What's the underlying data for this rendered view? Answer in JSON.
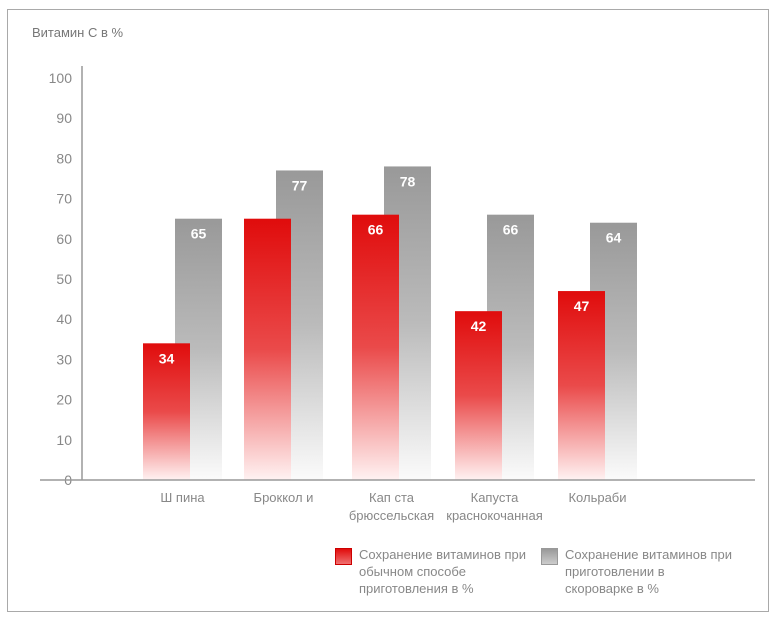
{
  "chart_data": {
    "type": "bar",
    "title": "",
    "ylabel": "Витамин С в %",
    "xlabel": "",
    "ylim": [
      0,
      100
    ],
    "yticks": [
      0,
      10,
      20,
      30,
      40,
      50,
      60,
      70,
      80,
      90,
      100
    ],
    "grid": false,
    "legend_position": "bottom-right",
    "categories": [
      [
        "Ш пина"
      ],
      [
        "Броккол и"
      ],
      [
        "Кап ста",
        "брюссельская"
      ],
      [
        "Капуста",
        "краснокочанная"
      ],
      [
        "Кольраби"
      ]
    ],
    "series": [
      {
        "name": "Сохранение витаминов при обычном способе приготовления в %",
        "values": [
          34,
          65,
          66,
          42,
          47
        ],
        "labels": [
          "34",
          "",
          "66",
          "42",
          "47"
        ],
        "color": "#e31414"
      },
      {
        "name": "Сохранение витаминов при приготовлении в скороварке в %",
        "values": [
          65,
          77,
          78,
          66,
          64
        ],
        "labels": [
          "65",
          "77",
          "78",
          "66",
          "64"
        ],
        "color": "#9a9a9a"
      }
    ]
  }
}
